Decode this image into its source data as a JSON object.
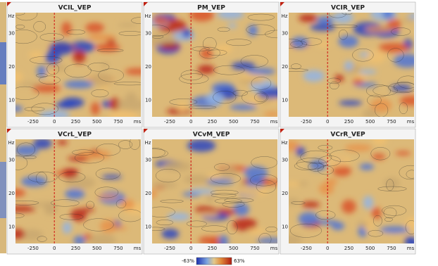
{
  "panels": [
    {
      "title": "VCIL_VEP"
    },
    {
      "title": "PM_VEP"
    },
    {
      "title": "VCIR_VEP"
    },
    {
      "title": "VCrL_VEP"
    },
    {
      "title": "VCvM_VEP"
    },
    {
      "title": "VCrR_VEP"
    }
  ],
  "y_axis": {
    "unit": "Hz",
    "ticks": [
      "30",
      "20",
      "10"
    ]
  },
  "x_axis": {
    "ticks": [
      "-250",
      "0",
      "250",
      "500",
      "750"
    ],
    "unit": "ms"
  },
  "colorbar": {
    "min_label": "-63%",
    "max_label": "63%"
  }
}
